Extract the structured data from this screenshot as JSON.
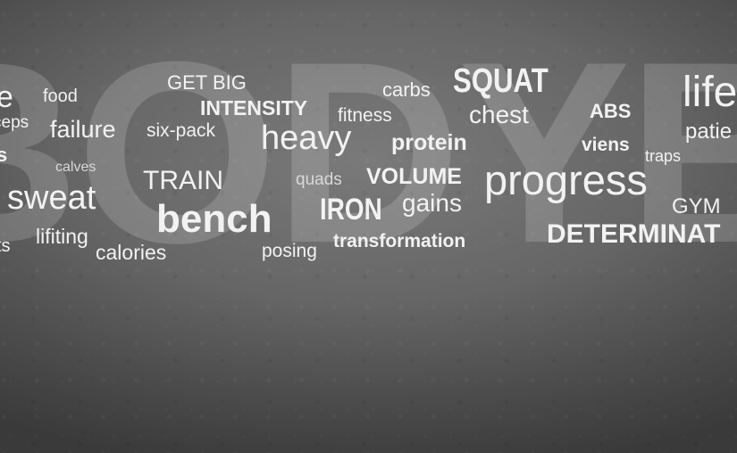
{
  "watermark": "BODYBUILDING",
  "words": {
    "e": "e",
    "food": "food",
    "get_big": "GET BIG",
    "carbs": "carbs",
    "squat": "SQUAT",
    "life": "life",
    "intensity": "INTENSITY",
    "fitness": "fitness",
    "chest": "chest",
    "abs": "ABS",
    "ceps": "ceps",
    "failure": "failure",
    "six_pack": "six-pack",
    "heavy": "heavy",
    "protein": "protein",
    "viens": "viens",
    "patie": "patie",
    "s": "s",
    "traps": "traps",
    "calves": "calves",
    "train": "TRAIN",
    "quads": "quads",
    "volume": "VOLUME",
    "progress": "progress",
    "sweat": "sweat",
    "gains": "gains",
    "gym": "GYM",
    "bench": "bench",
    "iron": "IRON",
    "determinat": "DETERMINAT",
    "lifiting": "lifiting",
    "ts": "ts",
    "transformation": "transformation",
    "calories": "calories",
    "posing": "posing"
  }
}
